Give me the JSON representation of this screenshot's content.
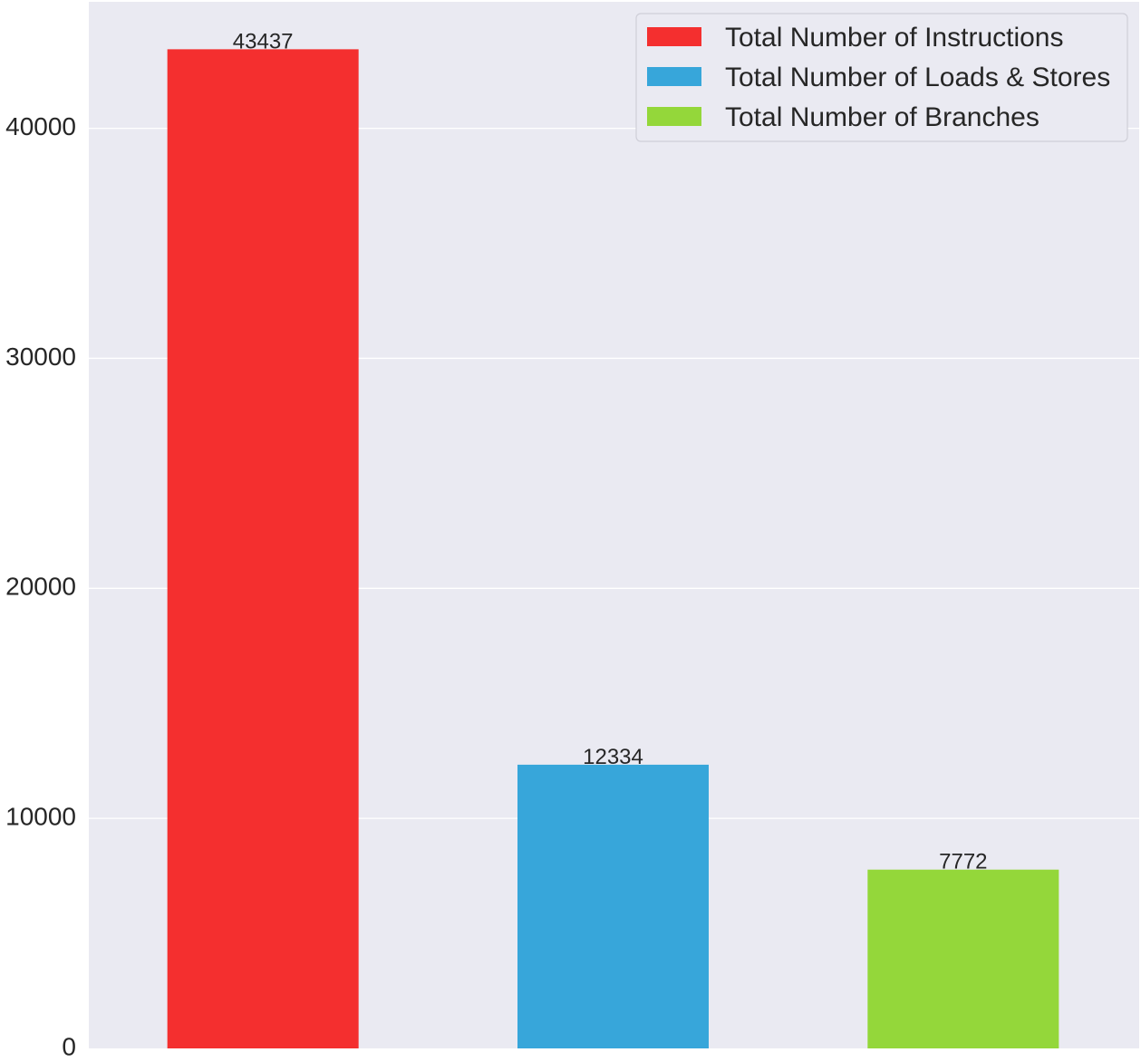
{
  "chart_data": {
    "type": "bar",
    "title": "",
    "xlabel": "",
    "ylabel": "",
    "ylim": [
      0,
      45500
    ],
    "yticks": [
      0,
      10000,
      20000,
      30000,
      40000
    ],
    "ytick_labels": [
      "0",
      "10000",
      "20000",
      "30000",
      "40000"
    ],
    "grid": true,
    "legend_position": "top-right",
    "categories": [
      "Total Number of Instructions",
      "Total Number of Loads & Stores",
      "Total Number of Branches"
    ],
    "values": [
      43437,
      12334,
      7772
    ],
    "value_labels": [
      "43437",
      "12334",
      "7772"
    ],
    "colors": [
      "#f42f2f",
      "#37a6da",
      "#94d73a"
    ]
  },
  "colors": {
    "plot_background": "#eaeaf2",
    "grid": "#ffffff",
    "text": "#262626"
  }
}
